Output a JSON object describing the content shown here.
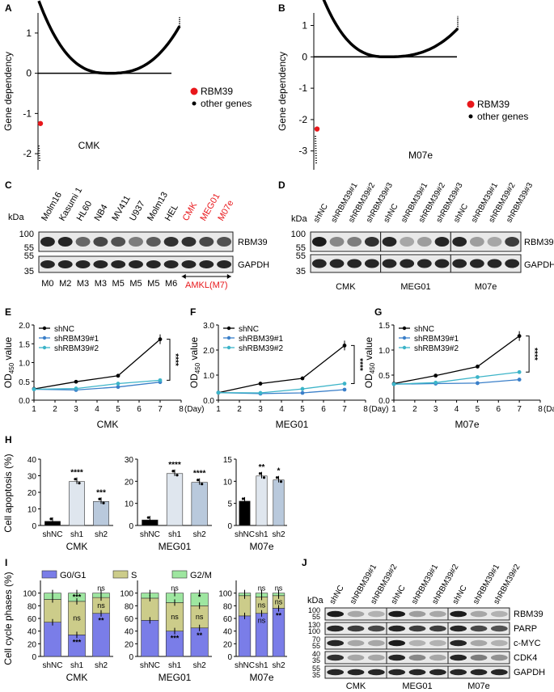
{
  "panels": {
    "A": "A",
    "B": "B",
    "C": "C",
    "D": "D",
    "E": "E",
    "F": "F",
    "G": "G",
    "H": "H",
    "I": "I",
    "J": "J"
  },
  "dep": {
    "ylabel": "Gene dependency",
    "legend_rbm": "RBM39",
    "legend_other": "other genes",
    "red": "#e8171b"
  },
  "chart_data": [
    {
      "type": "scatter",
      "id": "A",
      "title": "CMK",
      "ylabel": "Gene dependency",
      "yticks": [
        "1",
        "0",
        "-1",
        "-2"
      ],
      "ylim": [
        -2.4,
        1.5
      ],
      "highlight": {
        "name": "RBM39",
        "value": -1.25
      },
      "series": [
        "RBM39",
        "other genes"
      ],
      "xlabel": "CMK"
    },
    {
      "type": "scatter",
      "id": "B",
      "title": "M07e",
      "ylabel": "Gene dependency",
      "yticks": [
        "1",
        "0",
        "-1",
        "-2",
        "-3"
      ],
      "ylim": [
        -3.6,
        1.4
      ],
      "highlight": {
        "name": "RBM39",
        "value": -2.3
      },
      "series": [
        "RBM39",
        "other genes"
      ],
      "xlabel": "M07e"
    },
    {
      "type": "line",
      "id": "E",
      "cell": "CMK",
      "x": [
        1,
        3,
        5,
        7
      ],
      "xticks": [
        "1",
        "2",
        "3",
        "4",
        "5",
        "6",
        "7",
        "8"
      ],
      "xunit": "(Day)",
      "ylim": [
        0,
        2.0
      ],
      "yticks": [
        "0.0",
        "0.5",
        "1.0",
        "1.5",
        "2.0"
      ],
      "ylabel_main": "OD",
      "ylabel_sub": "450",
      "ylabel_tail": " value",
      "series": [
        {
          "name": "shNC",
          "values": [
            0.3,
            0.49,
            0.65,
            1.62
          ],
          "color": "#000000"
        },
        {
          "name": "shRBM39#1",
          "values": [
            0.29,
            0.27,
            0.35,
            0.48
          ],
          "color": "#3a7fc9"
        },
        {
          "name": "shRBM39#2",
          "values": [
            0.29,
            0.31,
            0.44,
            0.53
          ],
          "color": "#3cb4c8"
        }
      ],
      "sig": "****"
    },
    {
      "type": "line",
      "id": "F",
      "cell": "MEG01",
      "x": [
        1,
        3,
        5,
        7
      ],
      "xticks": [
        "1",
        "2",
        "3",
        "4",
        "5",
        "6",
        "7",
        "8"
      ],
      "xunit": "(Day)",
      "ylim": [
        0,
        3.0
      ],
      "yticks": [
        "0.0",
        "1.0",
        "2.0",
        "3.0"
      ],
      "ylabel_main": "OD",
      "ylabel_sub": "450",
      "ylabel_tail": " value",
      "series": [
        {
          "name": "shNC",
          "values": [
            0.3,
            0.66,
            0.87,
            2.18
          ],
          "color": "#000000"
        },
        {
          "name": "shRBM39#1",
          "values": [
            0.3,
            0.26,
            0.29,
            0.42
          ],
          "color": "#3a7fc9"
        },
        {
          "name": "shRBM39#2",
          "values": [
            0.3,
            0.29,
            0.45,
            0.66
          ],
          "color": "#3cb4c8"
        }
      ],
      "sig": "****"
    },
    {
      "type": "line",
      "id": "G",
      "cell": "M07e",
      "x": [
        1,
        3,
        5,
        7
      ],
      "xticks": [
        "1",
        "2",
        "3",
        "4",
        "5",
        "6",
        "7",
        "8"
      ],
      "xunit": "(Day)",
      "ylim": [
        0,
        1.5
      ],
      "yticks": [
        "0.0",
        "0.5",
        "1.0",
        "1.5"
      ],
      "ylabel_main": "OD",
      "ylabel_sub": "450",
      "ylabel_tail": " value",
      "series": [
        {
          "name": "shNC",
          "values": [
            0.33,
            0.49,
            0.67,
            1.28
          ],
          "color": "#000000"
        },
        {
          "name": "shRBM39#1",
          "values": [
            0.32,
            0.33,
            0.34,
            0.41
          ],
          "color": "#3a7fc9"
        },
        {
          "name": "shRBM39#2",
          "values": [
            0.32,
            0.35,
            0.46,
            0.56
          ],
          "color": "#3cb4c8"
        }
      ],
      "sig": "****"
    },
    {
      "type": "bar",
      "id": "H",
      "ylabel": "Cell apoptosis (%)",
      "groups": [
        {
          "cell": "CMK",
          "ylim": [
            0,
            40
          ],
          "yticks": [
            "0",
            "10",
            "20",
            "30",
            "40"
          ],
          "categories": [
            "shNC",
            "sh1",
            "sh2"
          ],
          "values": [
            2.5,
            26.5,
            14.5
          ],
          "sig": [
            "",
            "****",
            "***"
          ]
        },
        {
          "cell": "MEG01",
          "ylim": [
            0,
            30
          ],
          "yticks": [
            "0",
            "10",
            "20",
            "30"
          ],
          "categories": [
            "shNC",
            "sh1",
            "sh2"
          ],
          "values": [
            2.5,
            23.5,
            19.5
          ],
          "sig": [
            "",
            "****",
            "****"
          ]
        },
        {
          "cell": "M07e",
          "ylim": [
            0,
            15
          ],
          "yticks": [
            "0",
            "5",
            "10",
            "15"
          ],
          "categories": [
            "shNC",
            "sh1",
            "sh2"
          ],
          "values": [
            5.5,
            11.2,
            10.3
          ],
          "sig": [
            "",
            "**",
            "*"
          ]
        }
      ],
      "colors": [
        "#000000",
        "#dfe6ee",
        "#b9c9dc"
      ]
    },
    {
      "type": "bar",
      "id": "I",
      "stacked": true,
      "ylabel": "Cell cycle phases (%)",
      "legend": [
        "G0/G1",
        "S",
        "G2/M"
      ],
      "colors": [
        "#7a7de8",
        "#cccc8a",
        "#9ee6a0"
      ],
      "yticks": [
        "0",
        "20",
        "40",
        "60",
        "80",
        "100"
      ],
      "ylim": [
        0,
        120
      ],
      "groups": [
        {
          "cell": "CMK",
          "categories": [
            "shNC",
            "sh1",
            "sh2"
          ],
          "g0g1": [
            54,
            34,
            68
          ],
          "s": [
            36,
            53,
            25
          ],
          "g2m": [
            10,
            13,
            7
          ],
          "sig_g2m": [
            "",
            "***",
            "ns"
          ],
          "sig_s": [
            "",
            "ns",
            "ns"
          ],
          "sig_g0": [
            "",
            "***",
            "**"
          ]
        },
        {
          "cell": "MEG01",
          "categories": [
            "shNC",
            "sh1",
            "sh2"
          ],
          "g0g1": [
            57,
            40,
            45
          ],
          "s": [
            35,
            45,
            35
          ],
          "g2m": [
            8,
            15,
            20
          ],
          "sig_g2m": [
            "",
            "ns",
            "*"
          ],
          "sig_s": [
            "",
            "ns",
            "ns"
          ],
          "sig_g0": [
            "",
            "***",
            "**"
          ]
        },
        {
          "cell": "M07e",
          "categories": [
            "shNC",
            "sh1",
            "sh2"
          ],
          "g0g1": [
            64,
            68,
            76
          ],
          "s": [
            32,
            26,
            20
          ],
          "g2m": [
            4,
            6,
            4
          ],
          "sig_g2m": [
            "",
            "ns",
            "ns"
          ],
          "sig_s": [
            "",
            "ns",
            "ns"
          ],
          "sig_g0": [
            "",
            "ns",
            "**"
          ]
        }
      ]
    }
  ],
  "blotC": {
    "kda": "kDa",
    "lanes": [
      "Molm16",
      "Kasumi 1",
      "HL60",
      "NB4",
      "MV411",
      "U937",
      "Molm13",
      "HEL",
      "CMK",
      "MEG01",
      "M07e"
    ],
    "red_from": 8,
    "subtypes": [
      "M0",
      "M2",
      "M3",
      "M3",
      "M5",
      "M5",
      "M5",
      "M6"
    ],
    "amkl": "AMKL(M7)",
    "markers_top": [
      "100",
      "55"
    ],
    "markers_bottom": [
      "55",
      "35"
    ],
    "proteins": [
      "RBM39",
      "GAPDH"
    ],
    "rbm_int": [
      0.9,
      0.9,
      0.6,
      0.75,
      0.7,
      0.5,
      0.65,
      0.85,
      0.85,
      0.75,
      0.7
    ]
  },
  "blotD": {
    "kda": "kDa",
    "lanes": [
      "shNC",
      "shRBM39#1",
      "shRBM39#2",
      "shRBM39#3",
      "shNC",
      "shRBM39#1",
      "shRBM39#2",
      "shRBM39#3",
      "shNC",
      "shRBM39#1",
      "shRBM39#2",
      "shRBM39#3"
    ],
    "cells": [
      "CMK",
      "MEG01",
      "M07e"
    ],
    "markers_top": [
      "100",
      "55"
    ],
    "markers_bottom": [
      "55",
      "35"
    ],
    "proteins": [
      "RBM39",
      "GAPDH"
    ],
    "rbm_int": [
      0.95,
      0.45,
      0.5,
      0.85,
      0.9,
      0.3,
      0.35,
      0.9,
      0.9,
      0.35,
      0.3,
      0.8
    ]
  },
  "blotJ": {
    "kda": "kDa",
    "lanes": [
      "shNC",
      "shRBM39#1",
      "shRBM39#2",
      "shNC",
      "shRBM39#1",
      "shRBM39#2",
      "shNC",
      "shRBM39#1",
      "shRBM39#2"
    ],
    "cells": [
      "CMK",
      "MEG01",
      "M07e"
    ],
    "rows": [
      {
        "protein": "RBM39",
        "markers": [
          "100",
          "55"
        ],
        "int": [
          0.95,
          0.3,
          0.25,
          0.95,
          0.35,
          0.3,
          0.95,
          0.3,
          0.25
        ]
      },
      {
        "protein": "PARP",
        "markers": [
          "130",
          "100"
        ],
        "int": [
          0.9,
          0.8,
          0.75,
          0.9,
          0.8,
          0.8,
          0.9,
          0.75,
          0.7
        ]
      },
      {
        "protein": "c-MYC",
        "markers": [
          "70",
          "55"
        ],
        "int": [
          0.9,
          0.3,
          0.3,
          0.95,
          0.25,
          0.25,
          0.9,
          0.3,
          0.25
        ]
      },
      {
        "protein": "CDK4",
        "markers": [
          "40",
          "35"
        ],
        "int": [
          0.85,
          0.3,
          0.3,
          0.9,
          0.45,
          0.3,
          0.9,
          0.5,
          0.4
        ]
      },
      {
        "protein": "GAPDH",
        "markers": [
          "55",
          "35"
        ],
        "int": [
          0.9,
          0.9,
          0.9,
          0.9,
          0.9,
          0.9,
          0.9,
          0.9,
          0.9
        ]
      }
    ]
  }
}
